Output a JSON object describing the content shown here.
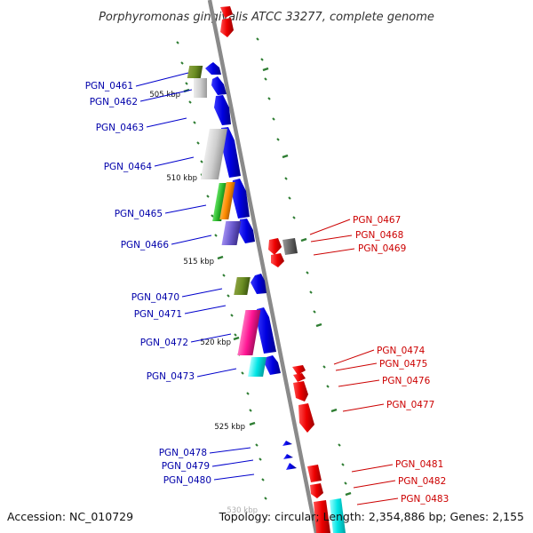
{
  "title": "Porphyromonas gingivalis ATCC 33277, complete genome",
  "accession": "Accession: NC_010729",
  "topology": "Topology: circular; Length: 2,354,886 bp; Genes: 2,155",
  "colors": {
    "backbone": "#888888",
    "ruler_tick": "#2e7d32",
    "label_left": "#0000aa",
    "label_right": "#cc0000",
    "forward_cds": "#0000ee",
    "reverse_cds": "#ee0000"
  },
  "kbp_marks": [
    {
      "label": "505 kbp"
    },
    {
      "label": "510 kbp"
    },
    {
      "label": "515 kbp"
    },
    {
      "label": "520 kbp"
    },
    {
      "label": "525 kbp"
    },
    {
      "label": "530 kbp"
    }
  ],
  "left_labels": [
    {
      "label": "PGN_0461"
    },
    {
      "label": "PGN_0462"
    },
    {
      "label": "PGN_0463"
    },
    {
      "label": "PGN_0464"
    },
    {
      "label": "PGN_0465"
    },
    {
      "label": "PGN_0466"
    },
    {
      "label": "PGN_0470"
    },
    {
      "label": "PGN_0471"
    },
    {
      "label": "PGN_0472"
    },
    {
      "label": "PGN_0473"
    },
    {
      "label": "PGN_0478"
    },
    {
      "label": "PGN_0479"
    },
    {
      "label": "PGN_0480"
    }
  ],
  "right_labels": [
    {
      "label": "PGN_0467"
    },
    {
      "label": "PGN_0468"
    },
    {
      "label": "PGN_0469"
    },
    {
      "label": "PGN_0474"
    },
    {
      "label": "PGN_0475"
    },
    {
      "label": "PGN_0476"
    },
    {
      "label": "PGN_0477"
    },
    {
      "label": "PGN_0481"
    },
    {
      "label": "PGN_0482"
    },
    {
      "label": "PGN_0483"
    }
  ]
}
